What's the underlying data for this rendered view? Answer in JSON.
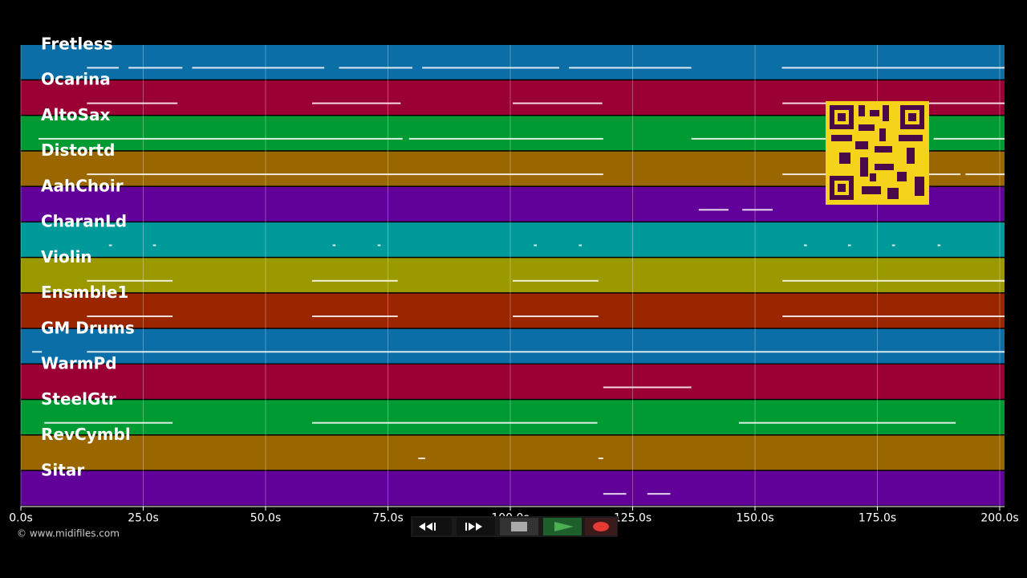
{
  "chart_data": {
    "type": "timeline",
    "credit": "© www.midifiles.com",
    "xlim": [
      0,
      200
    ],
    "xticks": [
      {
        "value": 0,
        "label": "0.0s"
      },
      {
        "value": 25,
        "label": "25.0s"
      },
      {
        "value": 50,
        "label": "50.0s"
      },
      {
        "value": 75,
        "label": "75.0s"
      },
      {
        "value": 100,
        "label": "100.0s"
      },
      {
        "value": 125,
        "label": "125.0s"
      },
      {
        "value": 150,
        "label": "150.0s"
      },
      {
        "value": 175,
        "label": "175.0s"
      },
      {
        "value": 200,
        "label": "200.0s"
      }
    ],
    "grid": true,
    "tracks": [
      {
        "name": "Fretless",
        "color": "#0b6ea6",
        "segments": [
          [
            13.5,
            20
          ],
          [
            22,
            33
          ],
          [
            35,
            62
          ],
          [
            65,
            80
          ],
          [
            82,
            110
          ],
          [
            112,
            137
          ],
          [
            155.5,
            201
          ]
        ]
      },
      {
        "name": "Ocarina",
        "color": "#9a0033",
        "segments": [
          [
            13.5,
            32
          ],
          [
            59.5,
            77.6
          ],
          [
            100.5,
            118.8
          ],
          [
            155.6,
            201
          ]
        ]
      },
      {
        "name": "AltoSax",
        "color": "#009a33",
        "segments": [
          [
            3.6,
            78
          ],
          [
            79.3,
            119
          ],
          [
            137,
            165
          ],
          [
            186.5,
            201
          ]
        ]
      },
      {
        "name": "Distortd",
        "color": "#9a6600",
        "segments": [
          [
            13.5,
            119
          ],
          [
            155.6,
            192
          ],
          [
            193,
            201
          ]
        ]
      },
      {
        "name": "AahChoir",
        "color": "#62009a",
        "segments": [
          [
            138.5,
            144.6
          ],
          [
            147.4,
            153.6
          ]
        ]
      },
      {
        "name": "CharanLd",
        "color": "#009a9a",
        "segments": [
          [
            18,
            18.6
          ],
          [
            27,
            27.6
          ],
          [
            63.7,
            64.3
          ],
          [
            72.9,
            73.5
          ],
          [
            104.8,
            105.4
          ],
          [
            114,
            114.6
          ],
          [
            160,
            160.6
          ],
          [
            169,
            169.6
          ],
          [
            178,
            178.6
          ],
          [
            187.3,
            187.9
          ]
        ]
      },
      {
        "name": "Violin",
        "color": "#9a9a00",
        "segments": [
          [
            13.5,
            31
          ],
          [
            59.5,
            77
          ],
          [
            100.5,
            118
          ],
          [
            155.6,
            201
          ]
        ]
      },
      {
        "name": "Ensmble1",
        "color": "#9a2600",
        "segments": [
          [
            13.5,
            31
          ],
          [
            59.5,
            77
          ],
          [
            100.5,
            118
          ],
          [
            155.6,
            201
          ]
        ]
      },
      {
        "name": "GM Drums",
        "color": "#0b6ea6",
        "segments": [
          [
            2.3,
            4.3
          ],
          [
            13.5,
            201
          ]
        ]
      },
      {
        "name": "WarmPd",
        "color": "#9a0033",
        "segments": [
          [
            119,
            137
          ]
        ]
      },
      {
        "name": "SteelGtr",
        "color": "#009a33",
        "segments": [
          [
            4.8,
            31
          ],
          [
            59.5,
            117.8
          ],
          [
            146.7,
            191
          ]
        ]
      },
      {
        "name": "RevCymbl",
        "color": "#9a6600",
        "segments": [
          [
            81.2,
            82.6
          ],
          [
            118,
            119
          ]
        ]
      },
      {
        "name": "Sitar",
        "color": "#62009a",
        "segments": [
          [
            119,
            123.7
          ],
          [
            128,
            132.7
          ]
        ]
      }
    ]
  }
}
